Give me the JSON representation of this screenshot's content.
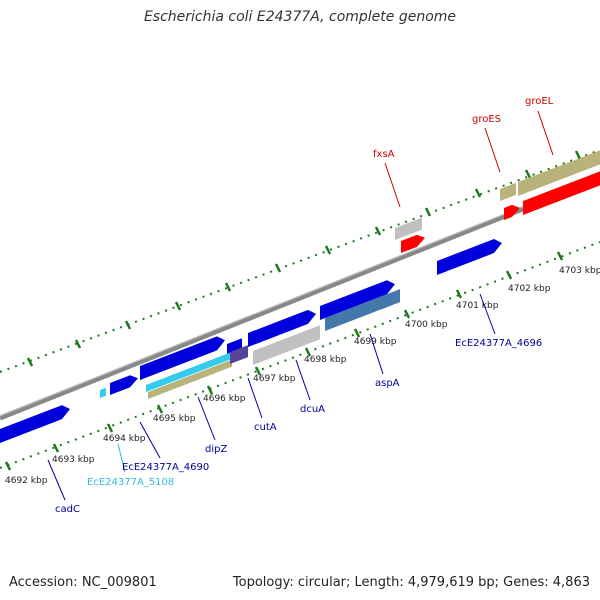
{
  "title": "Escherichia coli E24377A, complete genome",
  "accession": "Accession: NC_009801",
  "topology": "Topology: circular; Length: 4,979,619 bp; Genes: 4,863",
  "colors": {
    "cds": "#0000dd",
    "highlight": "#ff0000",
    "special": "#33ccee",
    "grey": "#c0c0c0",
    "tan": "#b9b27a",
    "steel": "#4477aa",
    "tick": "#1a7a1a"
  },
  "ticks": [
    {
      "label": "4692 kbp"
    },
    {
      "label": "4693 kbp"
    },
    {
      "label": "4694 kbp"
    },
    {
      "label": "4695 kbp"
    },
    {
      "label": "4696 kbp"
    },
    {
      "label": "4697 kbp"
    },
    {
      "label": "4698 kbp"
    },
    {
      "label": "4699 kbp"
    },
    {
      "label": "4700 kbp"
    },
    {
      "label": "4701 kbp"
    },
    {
      "label": "4702 kbp"
    },
    {
      "label": "4703 kbp"
    }
  ],
  "genes": [
    {
      "label": "cadC",
      "color": "#000099"
    },
    {
      "label": "EcE24377A_5108",
      "color": "#33bbdd"
    },
    {
      "label": "EcE24377A_4690",
      "color": "#000099"
    },
    {
      "label": "dipZ",
      "color": "#000099"
    },
    {
      "label": "cutA",
      "color": "#000099"
    },
    {
      "label": "dcuA",
      "color": "#000099"
    },
    {
      "label": "aspA",
      "color": "#000099"
    },
    {
      "label": "EcE24377A_4696",
      "color": "#000099"
    },
    {
      "label": "fxsA",
      "color": "#cc0000"
    },
    {
      "label": "groES",
      "color": "#cc0000"
    },
    {
      "label": "groEL",
      "color": "#cc0000"
    }
  ]
}
